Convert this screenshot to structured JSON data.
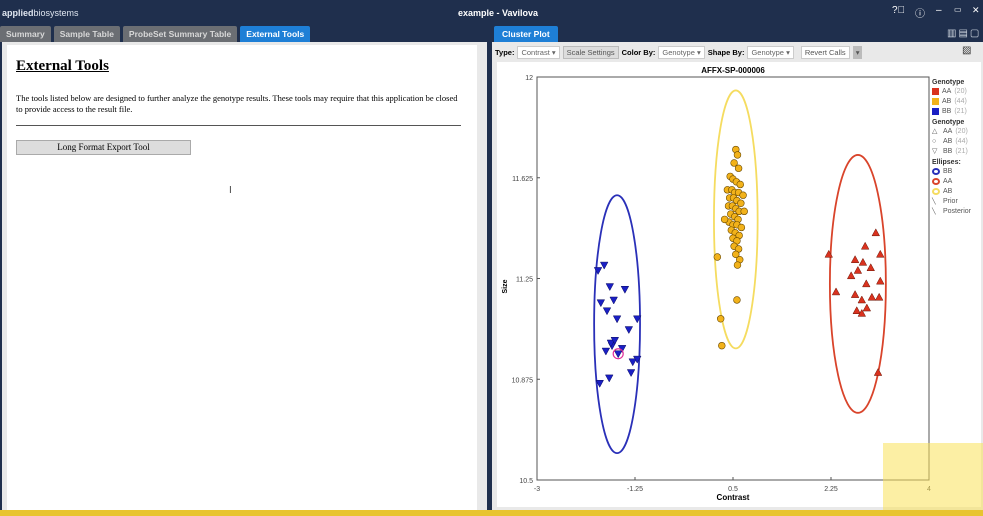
{
  "app": {
    "brand_bold": "applied",
    "brand_rest": "biosystems",
    "title": "example - Vavilova"
  },
  "window_controls": [
    "help-icon",
    "info-icon",
    "minimize-icon",
    "restore-icon",
    "close-icon"
  ],
  "left_tabs": [
    {
      "label": "Summary"
    },
    {
      "label": "Sample Table"
    },
    {
      "label": "ProbeSet Summary Table"
    },
    {
      "label": "External Tools",
      "active": true
    }
  ],
  "external_tools": {
    "heading": "External Tools",
    "description": "The tools listed below are designed to further analyze the genotype results. These tools may require that this application be closed to provide access to the result file.",
    "button": "Long Format Export Tool"
  },
  "right_tab": "Cluster Plot",
  "toolbar": {
    "type_label": "Type:",
    "type_value": "Contrast",
    "scale_settings": "Scale Settings",
    "color_by_label": "Color By:",
    "color_by_value": "Genotype",
    "shape_by_label": "Shape By:",
    "shape_by_value": "Genotype",
    "revert_calls": "Revert Calls"
  },
  "legend": {
    "color_title": "Genotype",
    "color_items": [
      {
        "label": "AA",
        "count": "(20)",
        "color": "#d9321f"
      },
      {
        "label": "AB",
        "count": "(44)",
        "color": "#f2b21a"
      },
      {
        "label": "BB",
        "count": "(21)",
        "color": "#1a1fc4"
      }
    ],
    "shape_title": "Genotype",
    "shape_items": [
      {
        "glyph": "△",
        "label": "AA",
        "count": "(20)"
      },
      {
        "glyph": "○",
        "label": "AB",
        "count": "(44)"
      },
      {
        "glyph": "▽",
        "label": "BB",
        "count": "(21)"
      }
    ],
    "ellipse_title": "Ellipses:",
    "ellipse_items": [
      {
        "label": "BB",
        "color": "#2a30b8"
      },
      {
        "label": "AA",
        "color": "#d9442b"
      },
      {
        "label": "AB",
        "color": "#f5dc60"
      }
    ],
    "line_items": [
      {
        "label": "Prior"
      },
      {
        "label": "Posterior"
      }
    ]
  },
  "chart_data": {
    "type": "scatter",
    "title": "AFFX-SP-000006",
    "xlabel": "Contrast",
    "ylabel": "Size",
    "xlim": [
      -3,
      4
    ],
    "ylim": [
      10.5,
      12
    ],
    "xticks": [
      "-3",
      "-1.25",
      "0.5",
      "2.25",
      "4"
    ],
    "yticks": [
      "10.5",
      "10.875",
      "11.25",
      "11.625",
      "12"
    ],
    "grid": false,
    "legend": "right",
    "series": [
      {
        "name": "BB",
        "color": "#1a1fc4",
        "marker": "triangle-down",
        "points": [
          [
            -1.91,
            11.28
          ],
          [
            -1.8,
            11.3
          ],
          [
            -1.7,
            11.22
          ],
          [
            -1.86,
            11.16
          ],
          [
            -1.75,
            11.13
          ],
          [
            -1.63,
            11.17
          ],
          [
            -1.43,
            11.21
          ],
          [
            -1.57,
            11.1
          ],
          [
            -1.36,
            11.06
          ],
          [
            -1.21,
            11.1
          ],
          [
            -1.66,
            11.0
          ],
          [
            -1.48,
            10.99
          ],
          [
            -1.68,
            11.01
          ],
          [
            -1.77,
            10.98
          ],
          [
            -1.29,
            10.94
          ],
          [
            -1.55,
            10.97
          ],
          [
            -1.32,
            10.9
          ],
          [
            -1.71,
            10.88
          ],
          [
            -1.88,
            10.86
          ],
          [
            -1.21,
            10.95
          ],
          [
            -1.61,
            11.02
          ]
        ],
        "ellipse": {
          "center": [
            -1.57,
            11.08
          ],
          "rx": 0.41,
          "ry": 0.48,
          "color": "#2a30b8"
        }
      },
      {
        "name": "AB",
        "color": "#f2b21a",
        "marker": "circle",
        "points": [
          [
            0.55,
            11.73
          ],
          [
            0.58,
            11.71
          ],
          [
            0.52,
            11.68
          ],
          [
            0.6,
            11.66
          ],
          [
            0.45,
            11.63
          ],
          [
            0.5,
            11.62
          ],
          [
            0.56,
            11.61
          ],
          [
            0.63,
            11.6
          ],
          [
            0.4,
            11.58
          ],
          [
            0.48,
            11.58
          ],
          [
            0.53,
            11.57
          ],
          [
            0.6,
            11.57
          ],
          [
            0.68,
            11.56
          ],
          [
            0.44,
            11.55
          ],
          [
            0.51,
            11.55
          ],
          [
            0.57,
            11.54
          ],
          [
            0.64,
            11.53
          ],
          [
            0.42,
            11.52
          ],
          [
            0.49,
            11.52
          ],
          [
            0.55,
            11.51
          ],
          [
            0.61,
            11.5
          ],
          [
            0.7,
            11.5
          ],
          [
            0.46,
            11.49
          ],
          [
            0.53,
            11.48
          ],
          [
            0.59,
            11.47
          ],
          [
            0.43,
            11.46
          ],
          [
            0.5,
            11.45
          ],
          [
            0.57,
            11.45
          ],
          [
            0.65,
            11.44
          ],
          [
            0.47,
            11.43
          ],
          [
            0.54,
            11.42
          ],
          [
            0.61,
            11.41
          ],
          [
            0.5,
            11.4
          ],
          [
            0.57,
            11.39
          ],
          [
            0.52,
            11.37
          ],
          [
            0.6,
            11.36
          ],
          [
            0.55,
            11.34
          ],
          [
            0.62,
            11.32
          ],
          [
            0.58,
            11.3
          ],
          [
            0.35,
            11.47
          ],
          [
            0.22,
            11.33
          ],
          [
            0.28,
            11.1
          ],
          [
            0.3,
            11.0
          ],
          [
            0.57,
            11.17
          ]
        ],
        "ellipse": {
          "center": [
            0.55,
            11.47
          ],
          "rx": 0.39,
          "ry": 0.48,
          "color": "#f5dc60"
        }
      },
      {
        "name": "AA",
        "color": "#d9321f",
        "marker": "triangle-up",
        "points": [
          [
            2.21,
            11.34
          ],
          [
            2.68,
            11.32
          ],
          [
            2.82,
            11.31
          ],
          [
            3.05,
            11.42
          ],
          [
            2.86,
            11.37
          ],
          [
            3.13,
            11.34
          ],
          [
            2.73,
            11.28
          ],
          [
            2.96,
            11.29
          ],
          [
            2.61,
            11.26
          ],
          [
            2.34,
            11.2
          ],
          [
            2.88,
            11.23
          ],
          [
            3.13,
            11.24
          ],
          [
            2.68,
            11.19
          ],
          [
            2.8,
            11.17
          ],
          [
            2.98,
            11.18
          ],
          [
            3.11,
            11.18
          ],
          [
            2.71,
            11.13
          ],
          [
            2.89,
            11.14
          ],
          [
            2.8,
            11.12
          ],
          [
            3.09,
            10.9
          ]
        ],
        "ellipse": {
          "center": [
            2.73,
            11.23
          ],
          "rx": 0.5,
          "ry": 0.48,
          "color": "#d9442b"
        }
      }
    ],
    "selected_point": [
      -1.55,
      10.97
    ]
  }
}
